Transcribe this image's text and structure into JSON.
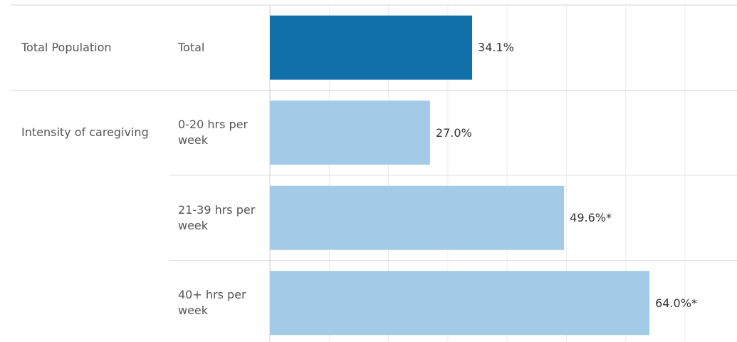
{
  "chart_data": {
    "type": "bar",
    "groups": [
      {
        "name": "Total Population",
        "color": "#1170aa",
        "categories": [
          "Total"
        ],
        "values": [
          34.1
        ],
        "value_labels": [
          "34.1%"
        ]
      },
      {
        "name": "Intensity of caregiving",
        "color": "#a3cbe8",
        "categories": [
          "0-20 hrs per week",
          "21-39 hrs per week",
          "40+ hrs per week"
        ],
        "values": [
          27.0,
          49.6,
          64.0
        ],
        "value_labels": [
          "27.0%",
          "49.6%*",
          "64.0%*"
        ]
      }
    ],
    "xlim": [
      0,
      78
    ],
    "xticks": [
      0,
      10,
      20,
      30,
      40,
      50,
      60,
      70
    ],
    "grid": true
  }
}
